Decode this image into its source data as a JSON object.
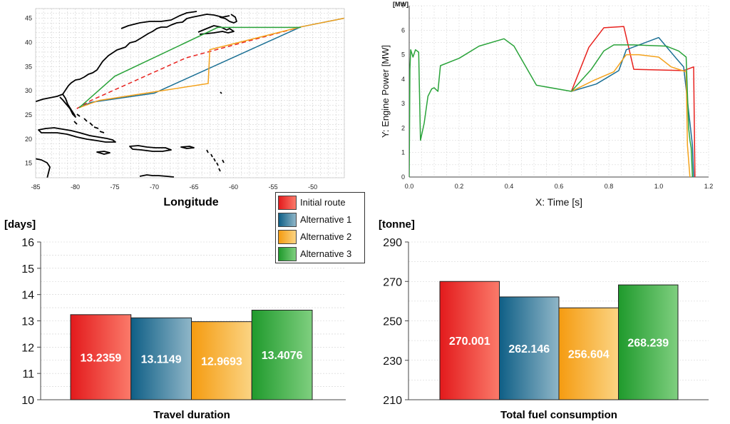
{
  "colors": {
    "initial": "#e8221e",
    "alt1": "#1a6f94",
    "alt2": "#f4a21c",
    "alt3": "#2aa33a"
  },
  "legend": {
    "items": [
      {
        "label": "Initial route",
        "color": "#e8221e"
      },
      {
        "label": "Alternative 1",
        "color": "#1a6f94"
      },
      {
        "label": "Alternative 2",
        "color": "#f4a21c"
      },
      {
        "label": "Alternative 3",
        "color": "#2aa33a"
      }
    ]
  },
  "chart_data": [
    {
      "id": "route_map",
      "type": "line",
      "title": "",
      "xlabel": "Longitude",
      "ylabel": "",
      "xlim": [
        -85,
        -46
      ],
      "ylim": [
        12,
        47
      ],
      "xticks": [
        -85,
        -80,
        -75,
        -70,
        -65,
        -60,
        -55,
        -50
      ],
      "yticks": [
        15,
        20,
        25,
        30,
        35,
        40,
        45
      ],
      "grid": true,
      "series": [
        {
          "name": "Initial route",
          "style": "dashed",
          "points": [
            [
              -79.8,
              26.3
            ],
            [
              -78,
              28
            ],
            [
              -66,
              36.8
            ],
            [
              -51.5,
              43.2
            ]
          ]
        },
        {
          "name": "Alternative 1",
          "style": "solid",
          "points": [
            [
              -79.5,
              26.5
            ],
            [
              -78,
              27.6
            ],
            [
              -70,
              29.5
            ],
            [
              -51.5,
              43.2
            ],
            [
              -46,
              45
            ]
          ]
        },
        {
          "name": "Alternative 2",
          "style": "solid",
          "points": [
            [
              -79.5,
              26.5
            ],
            [
              -77,
              28
            ],
            [
              -63.2,
              31.5
            ],
            [
              -63,
              38.5
            ],
            [
              -51.5,
              43.2
            ],
            [
              -46,
              45
            ]
          ]
        },
        {
          "name": "Alternative 3",
          "style": "solid",
          "points": [
            [
              -79.5,
              26.5
            ],
            [
              -75,
              33
            ],
            [
              -62,
              43.1
            ],
            [
              -51.5,
              43.1
            ]
          ]
        }
      ]
    },
    {
      "id": "engine_power",
      "type": "line",
      "title": "",
      "unit_label": "[MW]",
      "xlabel": "X: Time [s]",
      "ylabel": "Y: Engine Power [MW]",
      "xlim": [
        0,
        1.2
      ],
      "ylim": [
        0,
        7
      ],
      "xticks": [
        0.0,
        0.2,
        0.4,
        0.6,
        0.8,
        1.0,
        1.2
      ],
      "yticks": [
        0,
        1,
        2,
        3,
        4,
        5,
        6,
        7
      ],
      "grid": true,
      "series": [
        {
          "name": "Alternative 3",
          "points": [
            [
              0,
              0
            ],
            [
              0.003,
              4.4
            ],
            [
              0.006,
              5.2
            ],
            [
              0.015,
              4.9
            ],
            [
              0.025,
              5.2
            ],
            [
              0.038,
              5.1
            ],
            [
              0.045,
              1.5
            ],
            [
              0.06,
              2.2
            ],
            [
              0.075,
              3.3
            ],
            [
              0.09,
              3.6
            ],
            [
              0.1,
              3.65
            ],
            [
              0.115,
              3.5
            ],
            [
              0.125,
              4.55
            ],
            [
              0.2,
              4.85
            ],
            [
              0.28,
              5.35
            ],
            [
              0.38,
              5.65
            ],
            [
              0.42,
              5.35
            ],
            [
              0.51,
              3.75
            ],
            [
              0.65,
              3.5
            ]
          ]
        },
        {
          "name": "Initial route",
          "points": [
            [
              0.65,
              3.5
            ],
            [
              0.72,
              5.3
            ],
            [
              0.78,
              6.1
            ],
            [
              0.86,
              6.15
            ],
            [
              0.9,
              4.4
            ],
            [
              1.1,
              4.35
            ],
            [
              1.14,
              4.5
            ],
            [
              1.145,
              0
            ]
          ]
        },
        {
          "name": "Alternative 1",
          "points": [
            [
              0.65,
              3.5
            ],
            [
              0.75,
              3.8
            ],
            [
              0.84,
              4.35
            ],
            [
              0.87,
              5.2
            ],
            [
              1.0,
              5.7
            ],
            [
              1.07,
              4.85
            ],
            [
              1.1,
              4.5
            ],
            [
              1.135,
              1.3
            ],
            [
              1.14,
              0
            ]
          ]
        },
        {
          "name": "Alternative 2",
          "points": [
            [
              0.65,
              3.5
            ],
            [
              0.74,
              3.95
            ],
            [
              0.82,
              4.3
            ],
            [
              0.87,
              5.0
            ],
            [
              0.92,
              5.0
            ],
            [
              1.0,
              4.9
            ],
            [
              1.05,
              4.5
            ],
            [
              1.11,
              4.3
            ],
            [
              1.115,
              1.3
            ],
            [
              1.125,
              0
            ]
          ]
        },
        {
          "name": "Alternative 3",
          "points": [
            [
              0.65,
              3.5
            ],
            [
              0.73,
              4.4
            ],
            [
              0.78,
              5.15
            ],
            [
              0.82,
              5.4
            ],
            [
              0.9,
              5.4
            ],
            [
              1.03,
              5.35
            ],
            [
              1.08,
              5.15
            ],
            [
              1.11,
              4.9
            ],
            [
              1.12,
              2.0
            ],
            [
              1.125,
              1.5
            ],
            [
              1.13,
              1.2
            ],
            [
              1.135,
              0
            ]
          ]
        }
      ]
    },
    {
      "id": "travel_duration",
      "type": "bar",
      "unit_label": "[days]",
      "xlabel": "Travel duration",
      "ylim": [
        10,
        16
      ],
      "yticks": [
        10,
        11,
        12,
        13,
        14,
        15,
        16
      ],
      "categories": [
        "Initial route",
        "Alternative 1",
        "Alternative 2",
        "Alternative 3"
      ],
      "values": [
        13.2359,
        13.1149,
        12.9693,
        13.4076
      ],
      "value_labels": [
        "13.2359",
        "13.1149",
        "12.9693",
        "13.4076"
      ]
    },
    {
      "id": "fuel_consumption",
      "type": "bar",
      "unit_label": "[tonne]",
      "xlabel": "Total fuel consumption",
      "ylim": [
        210,
        290
      ],
      "yticks": [
        210,
        230,
        250,
        270,
        290
      ],
      "categories": [
        "Initial route",
        "Alternative 1",
        "Alternative 2",
        "Alternative 3"
      ],
      "values": [
        270.001,
        262.146,
        256.604,
        268.239
      ],
      "value_labels": [
        "270.001",
        "262.146",
        "256.604",
        "268.239"
      ]
    }
  ]
}
